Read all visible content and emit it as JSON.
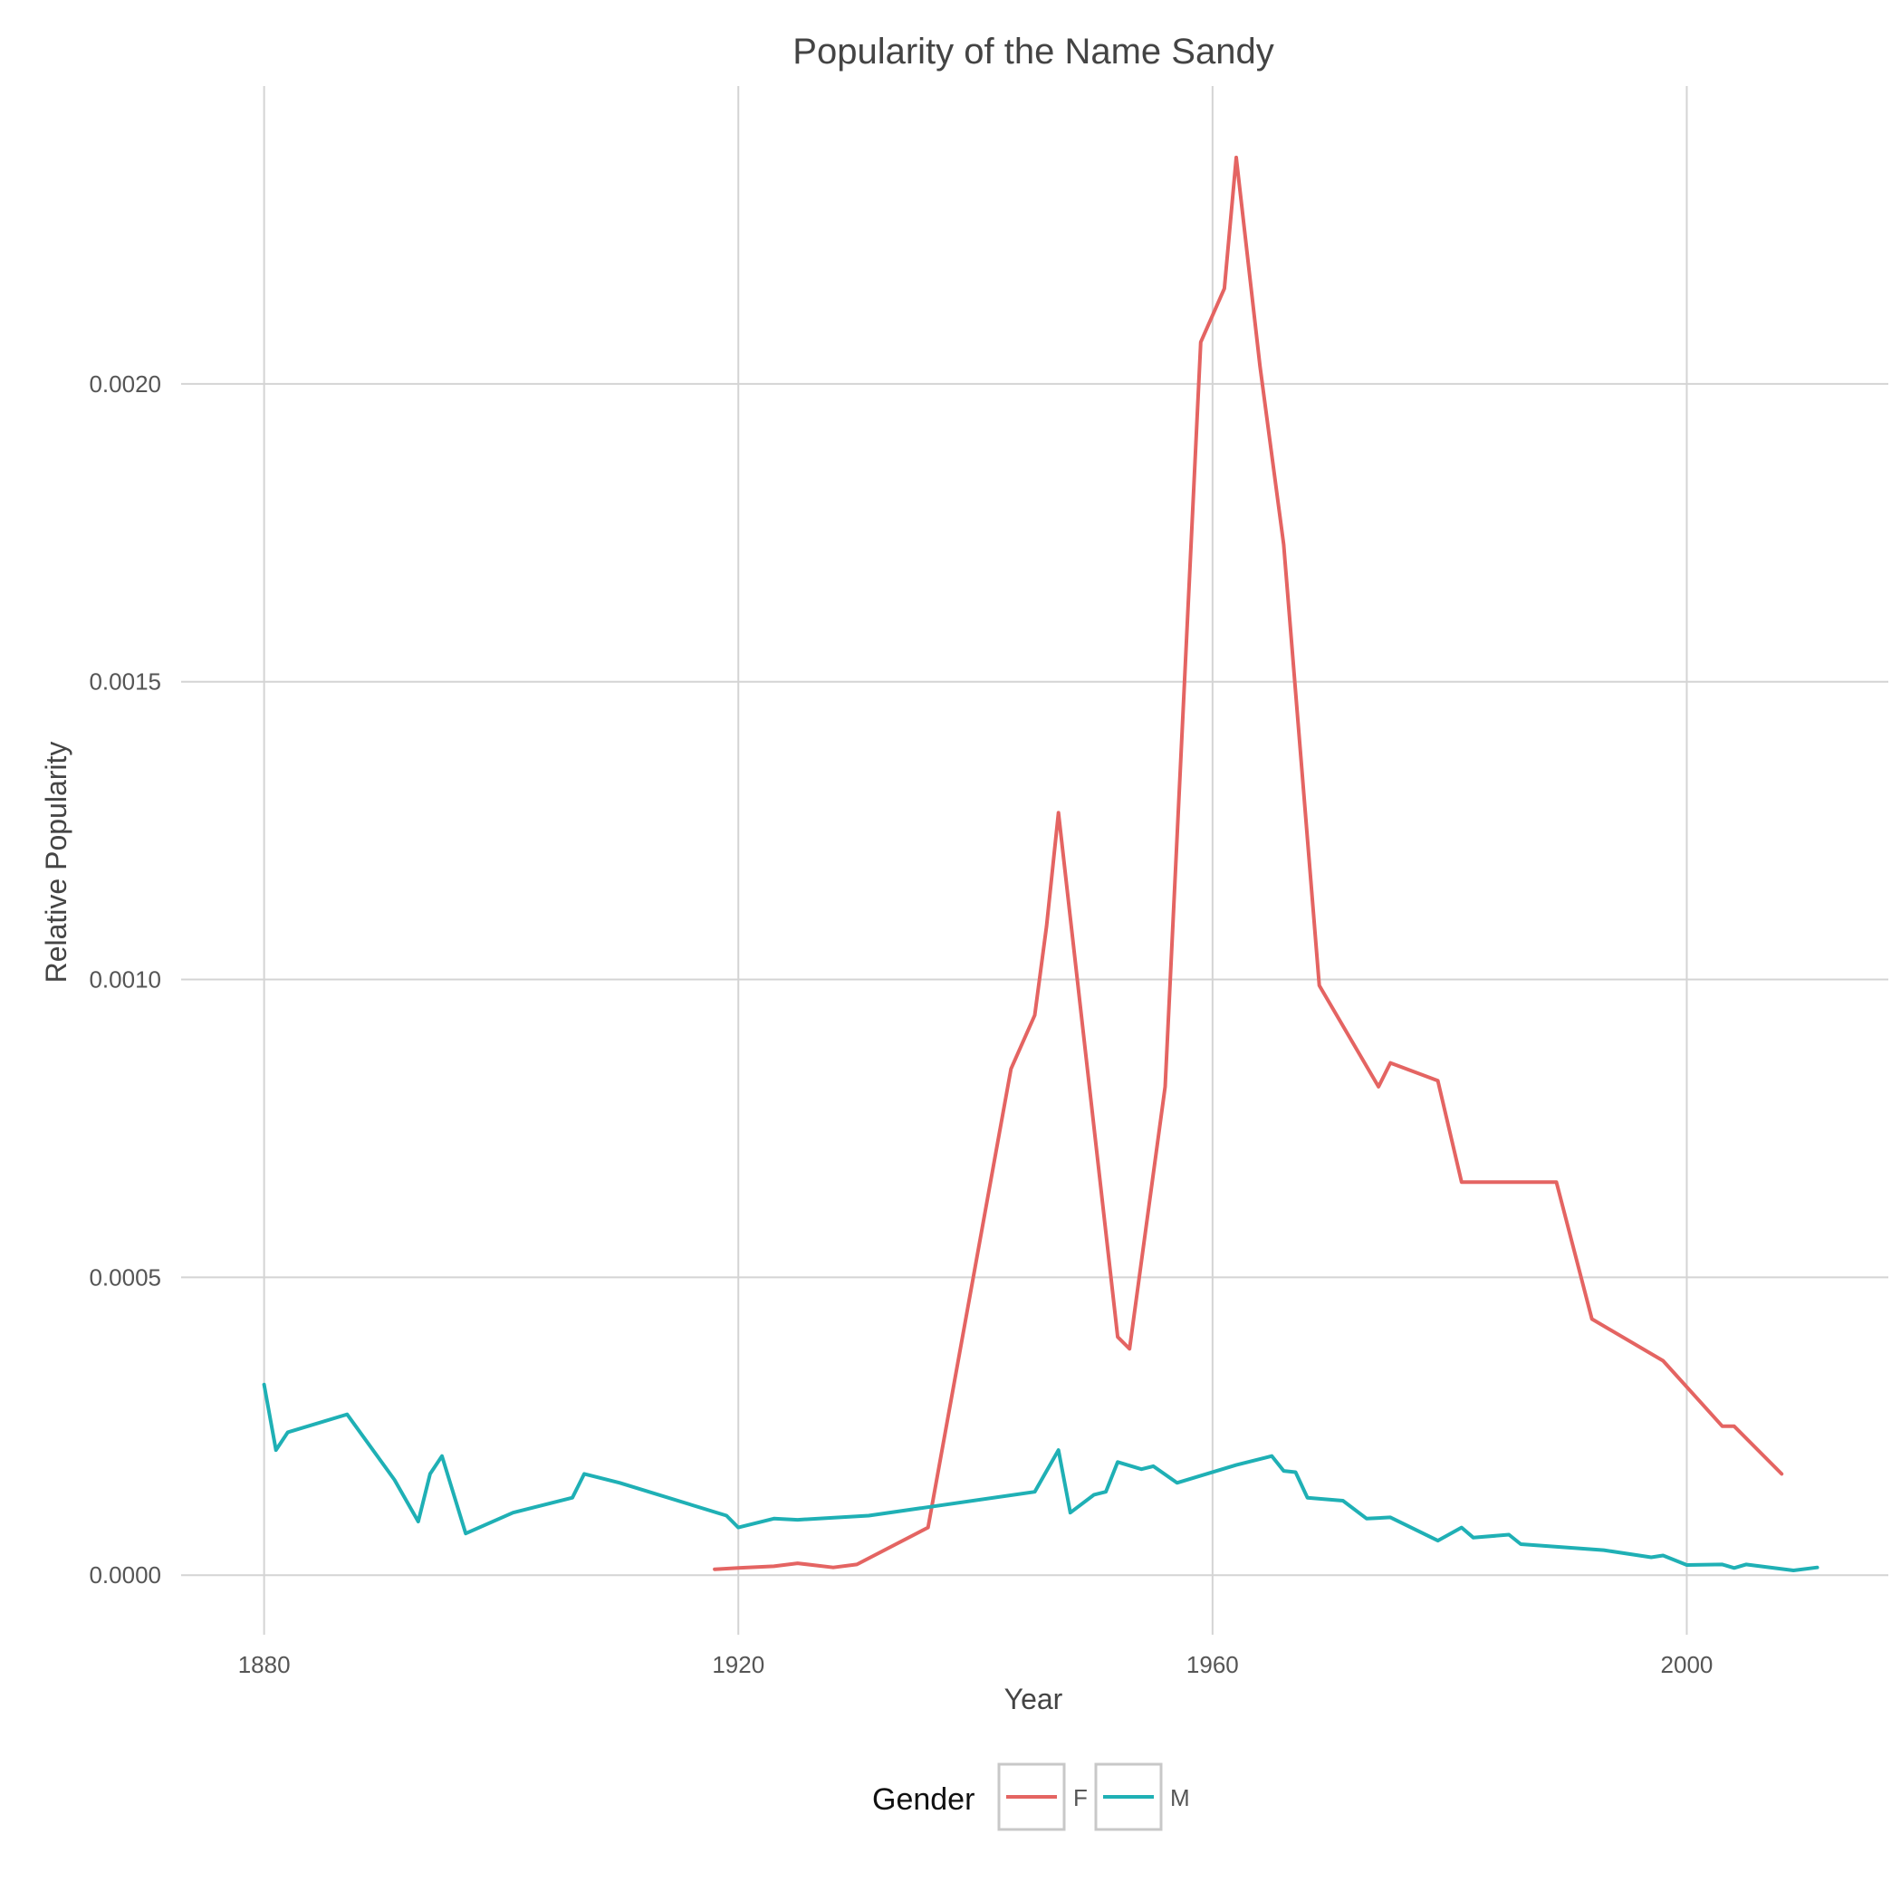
{
  "chart_data": {
    "type": "line",
    "title": "Popularity of the Name Sandy",
    "xlabel": "Year",
    "ylabel": "Relative Popularity",
    "xlim": [
      1873,
      2017
    ],
    "ylim": [
      -0.0001,
      0.0025
    ],
    "x_ticks": [
      1880,
      1920,
      1960,
      2000
    ],
    "y_ticks": [
      0.0,
      0.0005,
      0.001,
      0.0015,
      0.002
    ],
    "y_tick_labels": [
      "0.0000",
      "0.0005",
      "0.0010",
      "0.0015",
      "0.0020"
    ],
    "grid": true,
    "legend": {
      "title": "Gender",
      "position": "bottom"
    },
    "series": [
      {
        "name": "F",
        "color": "#e46462",
        "points": [
          [
            1918,
            1e-05
          ],
          [
            1920,
            1.2e-05
          ],
          [
            1923,
            1.5e-05
          ],
          [
            1925,
            2e-05
          ],
          [
            1928,
            1.3e-05
          ],
          [
            1930,
            1.8e-05
          ],
          [
            1936,
            8e-05
          ],
          [
            1942,
            0.00074
          ],
          [
            1943,
            0.00085
          ],
          [
            1945,
            0.00094
          ],
          [
            1946,
            0.00109
          ],
          [
            1947,
            0.00128
          ],
          [
            1952,
            0.0004
          ],
          [
            1953,
            0.00038
          ],
          [
            1956,
            0.00082
          ],
          [
            1959,
            0.00207
          ],
          [
            1961,
            0.00216
          ],
          [
            1962,
            0.00238
          ],
          [
            1964,
            0.00203
          ],
          [
            1966,
            0.00173
          ],
          [
            1969,
            0.00099
          ],
          [
            1974,
            0.00082
          ],
          [
            1975,
            0.00086
          ],
          [
            1979,
            0.00083
          ],
          [
            1981,
            0.00066
          ],
          [
            1989,
            0.00066
          ],
          [
            1992,
            0.00043
          ],
          [
            1998,
            0.00036
          ],
          [
            2003,
            0.00025
          ],
          [
            2004,
            0.00025
          ],
          [
            2008,
            0.00017
          ]
        ]
      },
      {
        "name": "M",
        "color": "#1fb0b5",
        "points": [
          [
            1880,
            0.00032
          ],
          [
            1881,
            0.00021
          ],
          [
            1882,
            0.00024
          ],
          [
            1887,
            0.00027
          ],
          [
            1891,
            0.00016
          ],
          [
            1893,
            9e-05
          ],
          [
            1894,
            0.00017
          ],
          [
            1895,
            0.0002
          ],
          [
            1897,
            7e-05
          ],
          [
            1901,
            0.000105
          ],
          [
            1906,
            0.00013
          ],
          [
            1907,
            0.00017
          ],
          [
            1910,
            0.000155
          ],
          [
            1919,
            0.0001
          ],
          [
            1920,
            8e-05
          ],
          [
            1923,
            9.5e-05
          ],
          [
            1925,
            9.3e-05
          ],
          [
            1931,
            0.0001
          ],
          [
            1945,
            0.00014
          ],
          [
            1947,
            0.00021
          ],
          [
            1948,
            0.000105
          ],
          [
            1950,
            0.000135
          ],
          [
            1951,
            0.00014
          ],
          [
            1952,
            0.00019
          ],
          [
            1954,
            0.000178
          ],
          [
            1955,
            0.000183
          ],
          [
            1957,
            0.000155
          ],
          [
            1962,
            0.000185
          ],
          [
            1965,
            0.0002
          ],
          [
            1966,
            0.000175
          ],
          [
            1967,
            0.000173
          ],
          [
            1968,
            0.00013
          ],
          [
            1971,
            0.000125
          ],
          [
            1973,
            9.5e-05
          ],
          [
            1975,
            9.7e-05
          ],
          [
            1979,
            5.8e-05
          ],
          [
            1981,
            8e-05
          ],
          [
            1982,
            6.3e-05
          ],
          [
            1985,
            6.8e-05
          ],
          [
            1986,
            5.2e-05
          ],
          [
            1993,
            4.2e-05
          ],
          [
            1997,
            3e-05
          ],
          [
            1998,
            3.3e-05
          ],
          [
            2000,
            1.7e-05
          ],
          [
            2003,
            1.8e-05
          ],
          [
            2004,
            1.2e-05
          ],
          [
            2005,
            1.8e-05
          ],
          [
            2009,
            8e-06
          ],
          [
            2011,
            1.3e-05
          ]
        ]
      }
    ]
  }
}
